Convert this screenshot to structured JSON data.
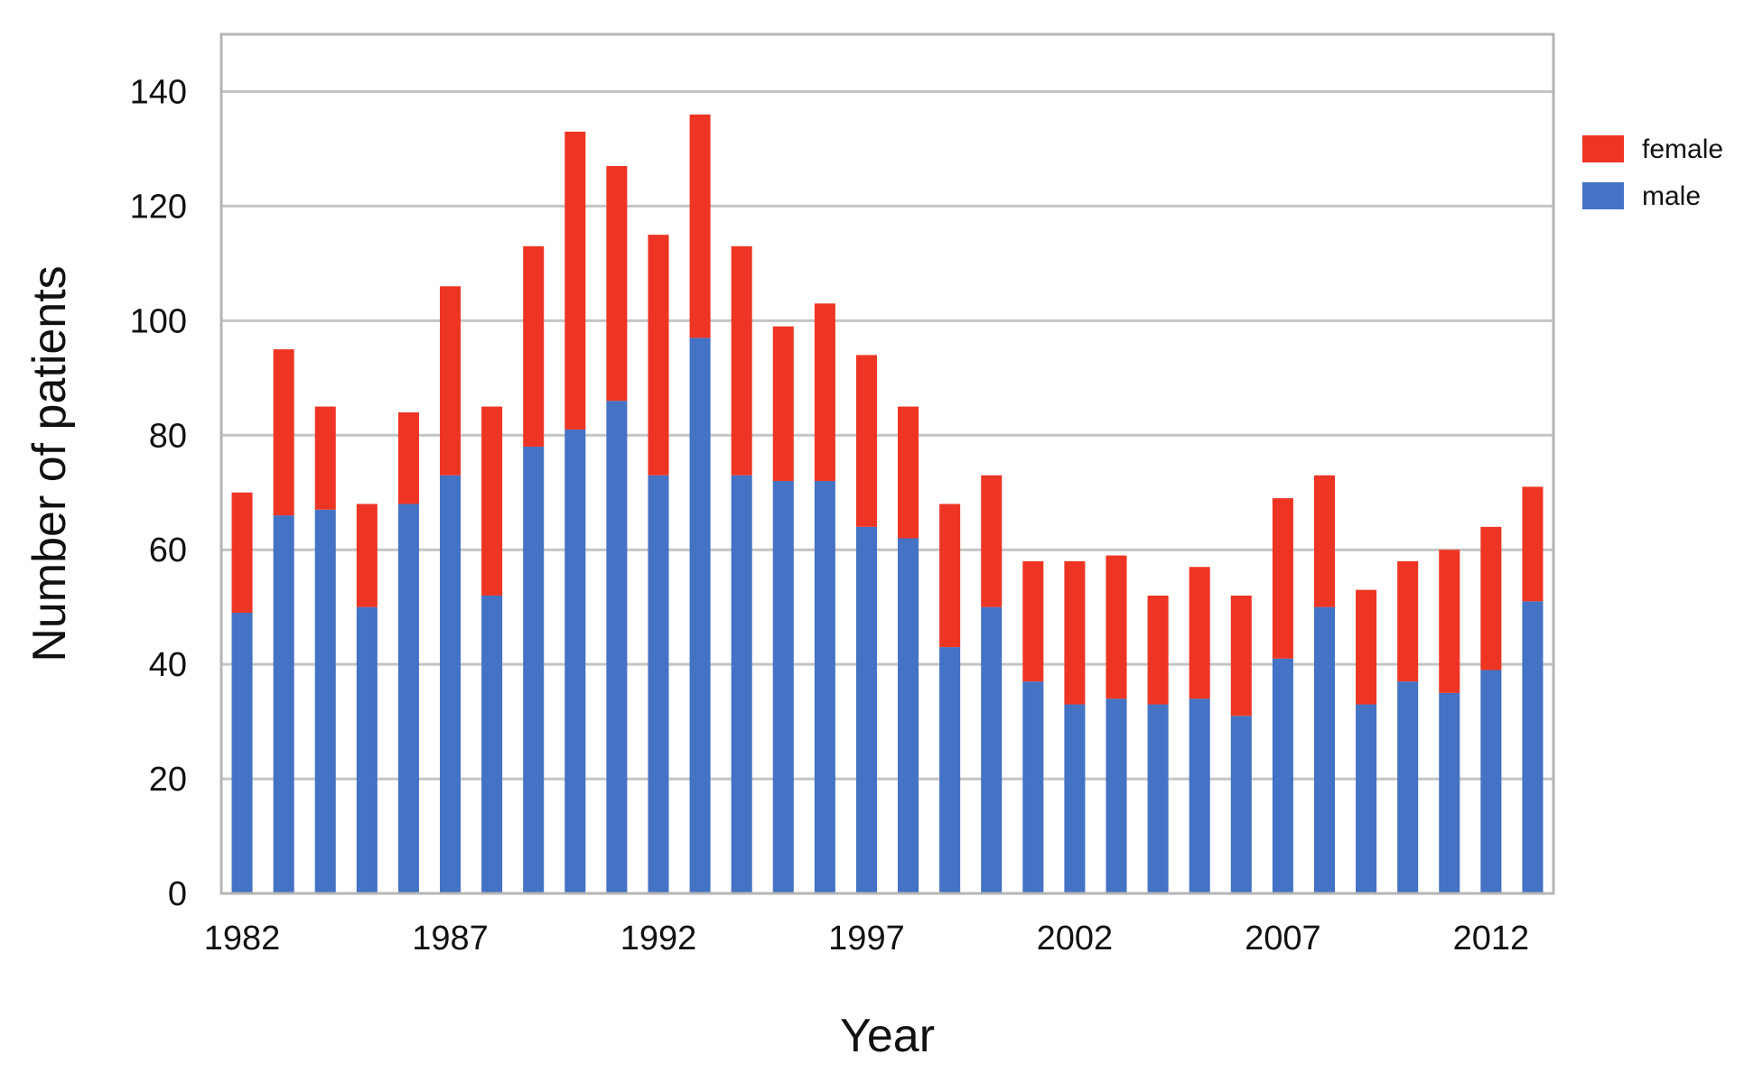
{
  "chart_data": {
    "type": "bar",
    "stacked": true,
    "xlabel": "Year",
    "ylabel": "Number of patients",
    "ylim": [
      0,
      150
    ],
    "yticks": [
      0,
      20,
      40,
      60,
      80,
      100,
      120,
      140
    ],
    "xtick_labels": [
      "1982",
      "1987",
      "1992",
      "1997",
      "2002",
      "2007",
      "2012"
    ],
    "grid": true,
    "legend_position": "top-right",
    "categories": [
      1982,
      1983,
      1984,
      1985,
      1986,
      1987,
      1988,
      1989,
      1990,
      1991,
      1992,
      1993,
      1994,
      1995,
      1996,
      1997,
      1998,
      1999,
      2000,
      2001,
      2002,
      2003,
      2004,
      2005,
      2006,
      2007,
      2008,
      2009,
      2010,
      2011,
      2012,
      2013
    ],
    "series": [
      {
        "name": "male",
        "color": "#4472c4",
        "values": [
          49,
          66,
          67,
          50,
          68,
          73,
          52,
          78,
          81,
          86,
          73,
          97,
          73,
          72,
          72,
          64,
          62,
          43,
          50,
          37,
          33,
          34,
          33,
          34,
          31,
          41,
          50,
          33,
          37,
          35,
          39,
          51
        ]
      },
      {
        "name": "female",
        "color": "#ee3524",
        "values": [
          21,
          29,
          18,
          18,
          16,
          33,
          33,
          35,
          52,
          41,
          42,
          39,
          40,
          27,
          31,
          30,
          23,
          25,
          23,
          21,
          25,
          25,
          19,
          23,
          21,
          28,
          23,
          20,
          21,
          25,
          25,
          20
        ]
      }
    ],
    "legend_order": [
      "female",
      "male"
    ]
  }
}
